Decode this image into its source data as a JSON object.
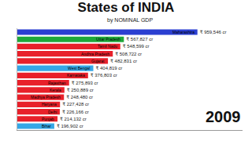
{
  "chart_data": {
    "type": "bar",
    "title": "States of INDIA",
    "subtitle": "by NOMINAL GDP",
    "annotations": [
      "2009"
    ],
    "orientation": "horizontal",
    "categories": [
      "Maharashtra",
      "Uttar Pradesh",
      "Tamil Nadu",
      "Andhra Pradesh",
      "Gujarat",
      "West Bengal",
      "Karnataka",
      "Rajasthan",
      "Kerala",
      "Madhya Pradesh",
      "Haryana",
      "Delhi",
      "Punjab",
      "Bihar"
    ],
    "values": [
      959546,
      567827,
      548599,
      508722,
      482831,
      404819,
      376803,
      275893,
      250889,
      248480,
      227428,
      226166,
      214132,
      196902
    ],
    "value_labels": [
      "₹ 959,546 cr",
      "₹ 567,827 cr",
      "₹ 548,599 cr",
      "₹ 508,722 cr",
      "₹ 482,831 cr",
      "₹ 404,819 cr",
      "₹ 376,803 cr",
      "₹ 275,893 cr",
      "₹ 250,889 cr",
      "₹ 248,480 cr",
      "₹ 227,428 cr",
      "₹ 226,166 cr",
      "₹ 214,132 cr",
      "₹ 196,902 cr"
    ],
    "colors": [
      "#2b3fd1",
      "#1fa83a",
      "#e8202a",
      "#e8202a",
      "#e8202a",
      "#35a7e6",
      "#e8202a",
      "#e8202a",
      "#e8202a",
      "#e8202a",
      "#e8202a",
      "#e8202a",
      "#e8202a",
      "#35a7e6"
    ],
    "xlim": [
      0,
      1200000
    ],
    "data_labels": true,
    "tick_labels": false,
    "grid": false
  }
}
